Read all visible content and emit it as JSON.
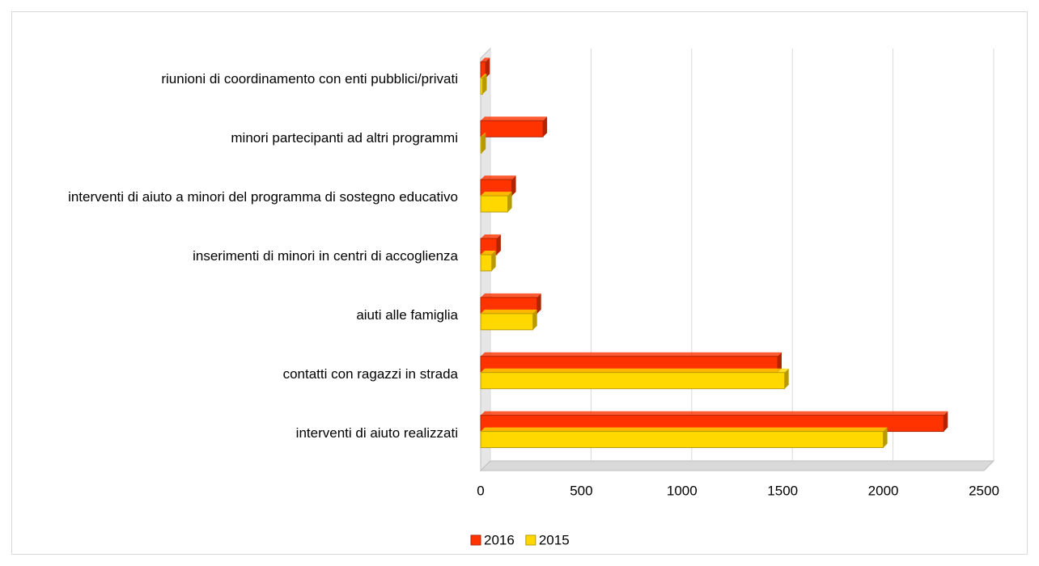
{
  "chart_data": {
    "type": "bar",
    "orientation": "horizontal",
    "categories": [
      "interventi di aiuto realizzati",
      "contatti con ragazzi in strada",
      "aiuti alle famiglia",
      "inserimenti di minori in centri di accoglienza",
      "interventi di aiuto a minori del programma di sostegno educativo",
      "minori partecipanti ad altri programmi",
      "riunioni di coordinamento con enti pubblici/privati"
    ],
    "series": [
      {
        "name": "2016",
        "color": "#ff3300",
        "values": [
          2300,
          1475,
          280,
          80,
          155,
          310,
          25
        ]
      },
      {
        "name": "2015",
        "color": "#ffd800",
        "values": [
          2000,
          1510,
          260,
          55,
          135,
          5,
          10
        ]
      }
    ],
    "xlim": [
      0,
      2500
    ],
    "xticks": [
      0,
      500,
      1000,
      1500,
      2000,
      2500
    ],
    "grid": true,
    "legend": "bottom"
  }
}
